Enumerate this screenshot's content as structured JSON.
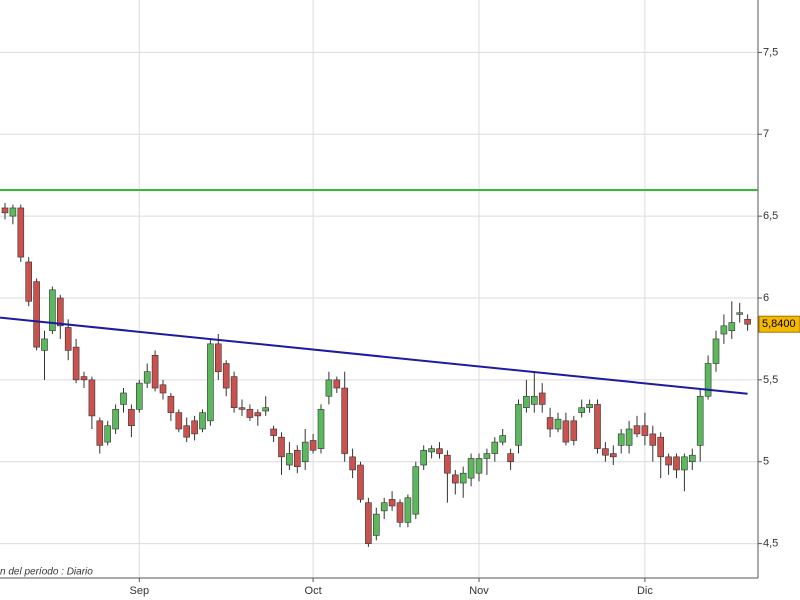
{
  "chart_data": {
    "type": "candlestick",
    "footnote": "n del período : Diario",
    "categories": [
      null,
      null,
      null,
      null,
      null,
      null,
      null,
      null,
      null,
      null,
      null,
      null,
      null,
      null,
      null,
      null,
      null,
      "Sep",
      null,
      null,
      null,
      null,
      null,
      null,
      null,
      null,
      null,
      null,
      null,
      null,
      null,
      null,
      null,
      null,
      null,
      null,
      null,
      null,
      null,
      "Oct",
      null,
      null,
      null,
      null,
      null,
      null,
      null,
      null,
      null,
      null,
      null,
      null,
      null,
      null,
      null,
      null,
      null,
      null,
      null,
      null,
      "Nov",
      null,
      null,
      null,
      null,
      null,
      null,
      null,
      null,
      null,
      null,
      null,
      null,
      null,
      null,
      null,
      null,
      null,
      null,
      null,
      null,
      "Dic",
      null,
      null,
      null,
      null,
      null,
      null,
      null,
      null,
      null,
      null,
      null,
      null,
      null
    ],
    "open": [
      6.55,
      6.5,
      6.55,
      6.22,
      6.1,
      5.68,
      5.8,
      6.0,
      5.82,
      5.7,
      5.52,
      5.5,
      5.25,
      5.12,
      5.2,
      5.35,
      5.32,
      5.32,
      5.48,
      5.65,
      5.47,
      5.4,
      5.3,
      5.22,
      5.25,
      5.2,
      5.25,
      5.72,
      5.6,
      5.52,
      5.33,
      5.32,
      5.3,
      5.31,
      5.2,
      5.15,
      4.98,
      5.07,
      5.0,
      5.13,
      5.08,
      5.4,
      5.5,
      5.45,
      5.03,
      4.98,
      4.75,
      4.55,
      4.7,
      4.77,
      4.75,
      4.63,
      4.68,
      4.98,
      5.06,
      5.08,
      5.04,
      4.92,
      4.87,
      4.9,
      4.93,
      5.02,
      5.05,
      5.12,
      5.05,
      5.1,
      5.33,
      5.35,
      5.42,
      5.27,
      5.2,
      5.25,
      5.25,
      5.3,
      5.33,
      5.35,
      5.08,
      5.05,
      5.1,
      5.1,
      5.22,
      5.22,
      5.17,
      5.15,
      5.03,
      5.03,
      4.95,
      5.0,
      5.1,
      5.4,
      5.6,
      5.78,
      5.8,
      5.9,
      5.87
    ],
    "high": [
      6.58,
      6.57,
      6.57,
      6.25,
      6.12,
      5.8,
      6.07,
      6.02,
      5.87,
      5.75,
      5.55,
      5.52,
      5.27,
      5.25,
      5.35,
      5.45,
      5.35,
      5.5,
      5.6,
      5.68,
      5.5,
      5.42,
      5.32,
      5.27,
      5.28,
      5.32,
      5.75,
      5.78,
      5.62,
      5.55,
      5.38,
      5.35,
      5.32,
      5.4,
      5.22,
      5.18,
      5.12,
      5.1,
      5.2,
      5.17,
      5.35,
      5.55,
      5.52,
      5.55,
      5.08,
      5.0,
      4.78,
      4.72,
      4.78,
      4.82,
      4.77,
      4.8,
      5.0,
      5.1,
      5.1,
      5.12,
      5.07,
      4.95,
      4.97,
      5.05,
      5.05,
      5.08,
      5.15,
      5.2,
      5.08,
      5.38,
      5.5,
      5.55,
      5.48,
      5.33,
      5.3,
      5.3,
      5.28,
      5.38,
      5.38,
      5.38,
      5.12,
      5.1,
      5.2,
      5.25,
      5.28,
      5.3,
      5.22,
      5.18,
      5.05,
      5.05,
      5.05,
      5.08,
      5.45,
      5.65,
      5.8,
      5.9,
      5.98,
      5.97,
      5.9
    ],
    "low": [
      6.48,
      6.45,
      6.22,
      5.95,
      5.68,
      5.5,
      5.78,
      5.75,
      5.62,
      5.48,
      5.45,
      5.2,
      5.05,
      5.1,
      5.17,
      5.3,
      5.15,
      5.3,
      5.45,
      5.43,
      5.38,
      5.25,
      5.18,
      5.12,
      5.13,
      5.18,
      5.22,
      5.5,
      5.4,
      5.3,
      5.28,
      5.25,
      5.22,
      5.28,
      5.12,
      4.92,
      4.95,
      4.93,
      4.95,
      5.05,
      5.05,
      5.35,
      5.42,
      5.0,
      4.9,
      4.75,
      4.48,
      4.52,
      4.65,
      4.7,
      4.6,
      4.6,
      4.65,
      4.95,
      5.02,
      5.02,
      4.75,
      4.8,
      4.78,
      4.85,
      4.88,
      4.92,
      5.0,
      5.1,
      4.95,
      5.05,
      5.3,
      5.3,
      5.3,
      5.15,
      5.18,
      5.1,
      5.1,
      5.27,
      5.3,
      5.05,
      5.0,
      4.98,
      5.05,
      5.05,
      5.15,
      5.1,
      5.0,
      4.9,
      4.92,
      4.9,
      4.82,
      4.95,
      5.0,
      5.38,
      5.55,
      5.72,
      5.75,
      5.85,
      5.8
    ],
    "close": [
      6.52,
      6.55,
      6.25,
      5.98,
      5.7,
      5.75,
      6.05,
      5.83,
      5.68,
      5.5,
      5.5,
      5.28,
      5.1,
      5.22,
      5.32,
      5.42,
      5.22,
      5.48,
      5.55,
      5.45,
      5.42,
      5.3,
      5.2,
      5.15,
      5.17,
      5.3,
      5.72,
      5.55,
      5.45,
      5.33,
      5.32,
      5.27,
      5.28,
      5.33,
      5.16,
      5.03,
      5.05,
      4.97,
      5.12,
      5.07,
      5.32,
      5.5,
      5.45,
      5.05,
      4.95,
      4.77,
      4.5,
      4.68,
      4.75,
      4.73,
      4.63,
      4.78,
      4.97,
      5.07,
      5.08,
      5.05,
      4.93,
      4.87,
      4.93,
      5.02,
      5.02,
      5.05,
      5.12,
      5.16,
      5.0,
      5.35,
      5.4,
      5.4,
      5.35,
      5.2,
      5.26,
      5.12,
      5.13,
      5.33,
      5.35,
      5.08,
      5.04,
      5.03,
      5.17,
      5.2,
      5.17,
      5.16,
      5.1,
      5.03,
      4.98,
      4.95,
      5.03,
      5.04,
      5.4,
      5.6,
      5.75,
      5.83,
      5.85,
      5.91,
      5.84
    ],
    "up_color": "#5cb85c",
    "down_color": "#c9524f",
    "ylim": [
      4.29,
      7.82
    ],
    "yticks": [
      {
        "value": 4.5,
        "label": "4,5"
      },
      5,
      {
        "value": 5.5,
        "label": "5,5"
      },
      6,
      {
        "value": 6.5,
        "label": "6,5"
      },
      7,
      {
        "value": 7.5,
        "label": "7,5"
      }
    ],
    "grid": true,
    "horizontal_line": {
      "value": 6.66,
      "color": "#33bb33"
    },
    "trend_line": {
      "start": 5.88,
      "end": 5.415,
      "color": "#1c1ca0"
    },
    "last_price": {
      "value": 5.84,
      "label": "5,8400",
      "color": "#f5b800"
    }
  }
}
